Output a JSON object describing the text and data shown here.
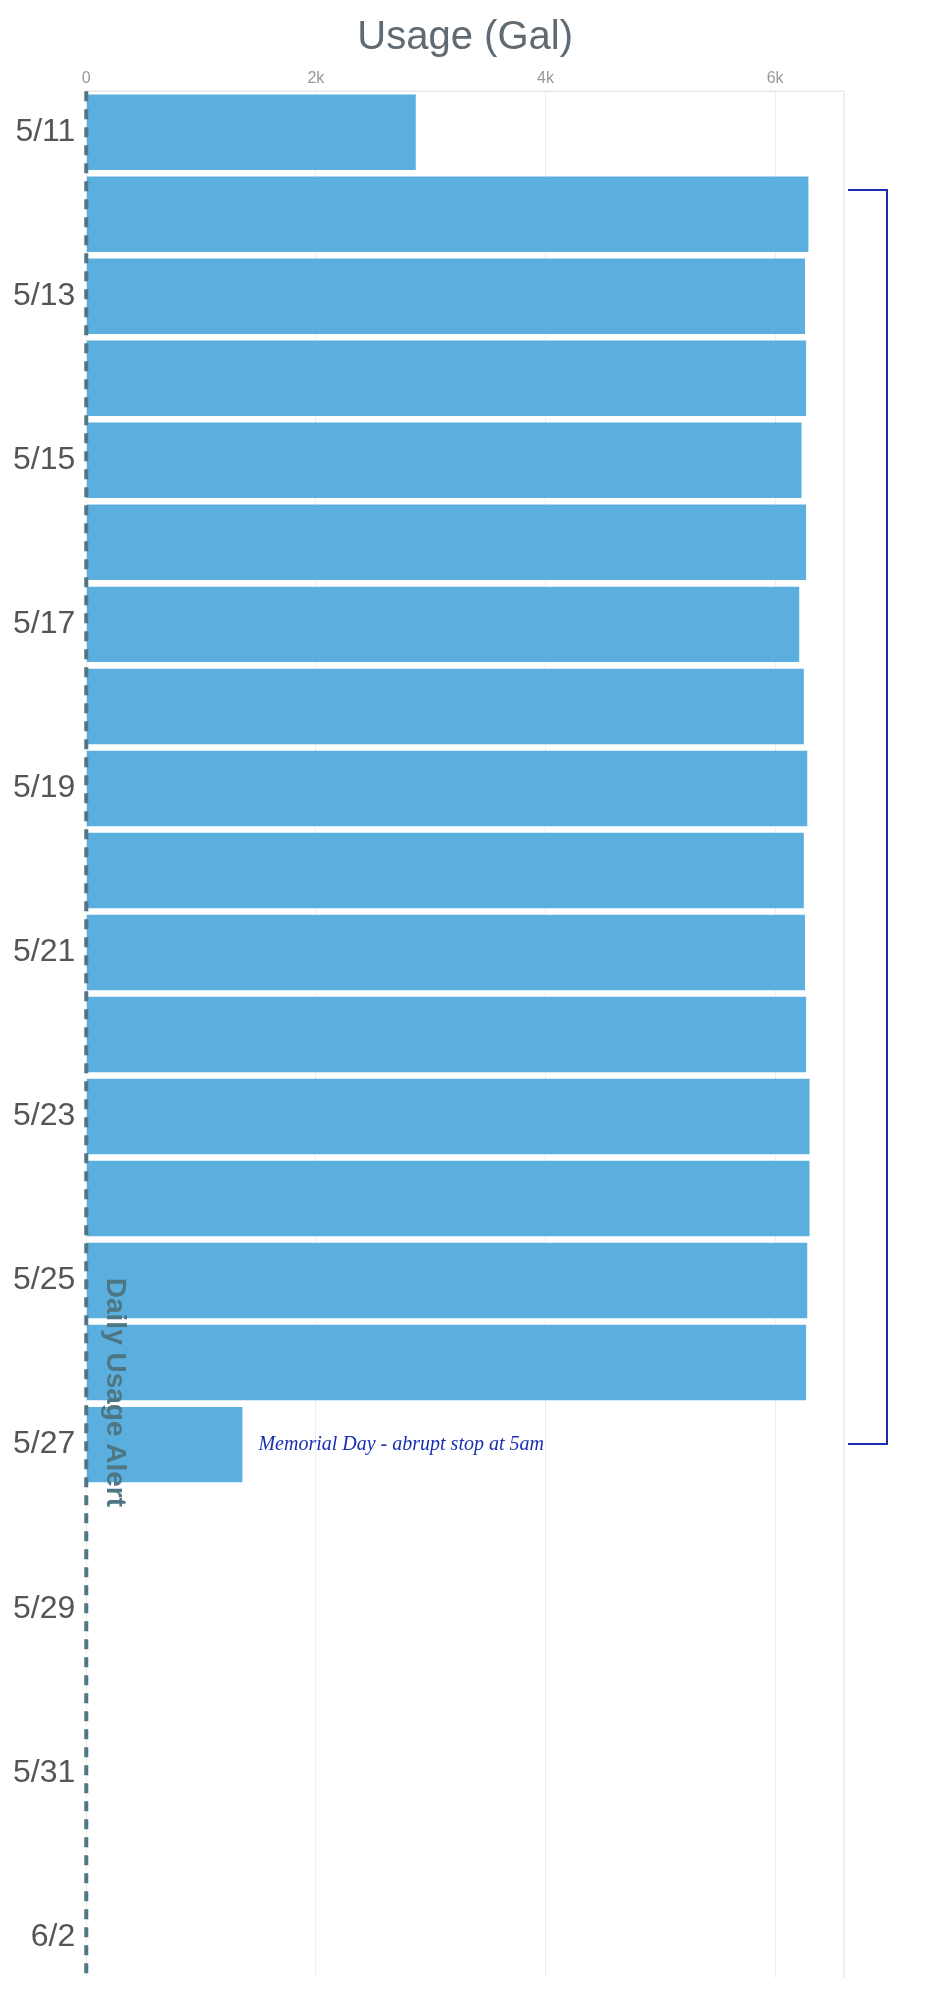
{
  "chart_data": {
    "type": "bar",
    "orientation": "horizontal",
    "xlabel": "Usage (Gal)",
    "categories": [
      "5/11",
      null,
      "5/13",
      null,
      "5/15",
      null,
      "5/17",
      null,
      "5/19",
      null,
      "5/21",
      null,
      "5/23",
      null,
      "5/25",
      null,
      "5/27",
      null,
      "5/29",
      null,
      "5/31",
      null,
      "6/2"
    ],
    "values": [
      2870,
      6290,
      6260,
      6270,
      6230,
      6270,
      6210,
      6250,
      6280,
      6250,
      6260,
      6270,
      6300,
      6300,
      6280,
      6270,
      1360,
      null,
      null,
      null,
      null,
      null,
      null
    ],
    "color": "#5aafdf",
    "xlim": [
      0,
      6600
    ],
    "xticks": [
      0,
      {
        "value": 2000,
        "label": "2k"
      },
      {
        "value": 4000,
        "label": "4k"
      },
      {
        "value": 6000,
        "label": "6k"
      }
    ],
    "grid": "x",
    "ref_lines": [
      {
        "axis": "x",
        "value": 0,
        "label": "Daily Usage Alert",
        "color": "#4f7683",
        "line_style": "dashed"
      }
    ],
    "annotations": [
      {
        "text": "Memorial Day - abrupt stop at 5am",
        "x": 1360,
        "y": "5/27"
      }
    ]
  }
}
